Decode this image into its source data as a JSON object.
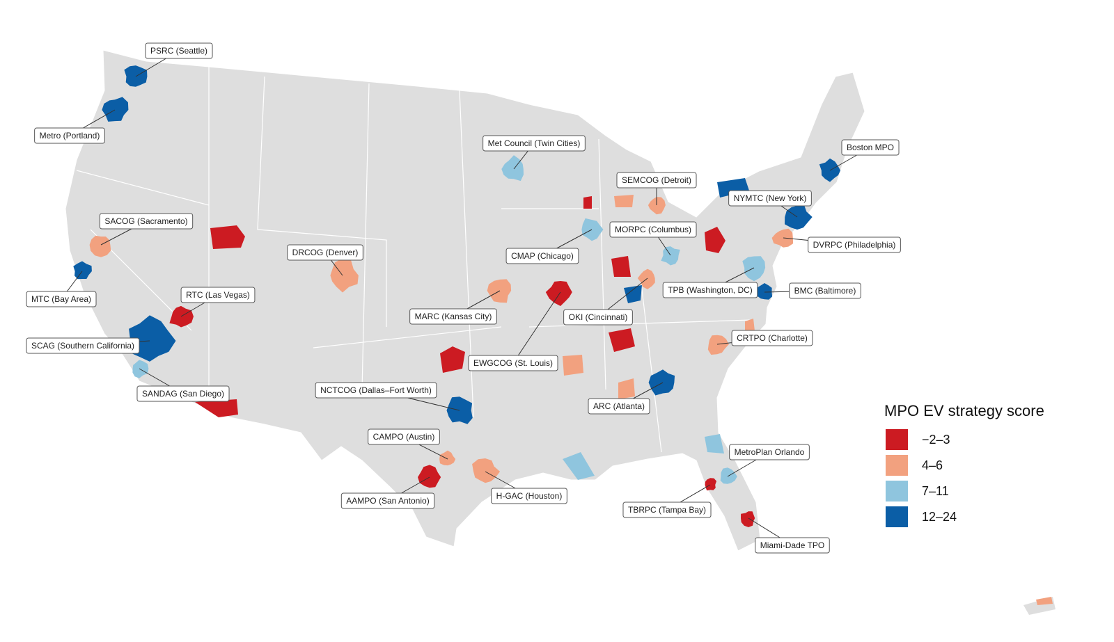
{
  "map": {
    "legend": {
      "title": "MPO EV strategy score",
      "items": [
        {
          "label": "−2–3",
          "color": "#cc1b22"
        },
        {
          "label": "4–6",
          "color": "#f2a17f"
        },
        {
          "label": "7–11",
          "color": "#8fc5de"
        },
        {
          "label": "12–24",
          "color": "#0b5ea6"
        }
      ]
    },
    "mpos": [
      {
        "label": "PSRC (Seattle)",
        "color": "#0b5ea6"
      },
      {
        "label": "Metro (Portland)",
        "color": "#0b5ea6"
      },
      {
        "label": "Met Council (Twin Cities)",
        "color": "#8fc5de"
      },
      {
        "label": "Boston MPO",
        "color": "#0b5ea6"
      },
      {
        "label": "SEMCOG (Detroit)",
        "color": "#f2a17f"
      },
      {
        "label": "NYMTC (New York)",
        "color": "#0b5ea6"
      },
      {
        "label": "SACOG (Sacramento)",
        "color": "#f2a17f"
      },
      {
        "label": "MORPC (Columbus)",
        "color": "#8fc5de"
      },
      {
        "label": "DVRPC (Philadelphia)",
        "color": "#f2a17f"
      },
      {
        "label": "DRCOG (Denver)",
        "color": "#f2a17f"
      },
      {
        "label": "CMAP (Chicago)",
        "color": "#8fc5de"
      },
      {
        "label": "MTC (Bay Area)",
        "color": "#0b5ea6"
      },
      {
        "label": "RTC (Las Vegas)",
        "color": "#cc1b22"
      },
      {
        "label": "TPB (Washington, DC)",
        "color": "#8fc5de"
      },
      {
        "label": "BMC (Baltimore)",
        "color": "#0b5ea6"
      },
      {
        "label": "MARC (Kansas City)",
        "color": "#f2a17f"
      },
      {
        "label": "OKI (Cincinnati)",
        "color": "#f2a17f"
      },
      {
        "label": "SCAG (Southern California)",
        "color": "#0b5ea6"
      },
      {
        "label": "CRTPO (Charlotte)",
        "color": "#f2a17f"
      },
      {
        "label": "EWGCOG (St. Louis)",
        "color": "#cc1b22"
      },
      {
        "label": "NCTCOG (Dallas–Fort Worth)",
        "color": "#0b5ea6"
      },
      {
        "label": "SANDAG (San Diego)",
        "color": "#8fc5de"
      },
      {
        "label": "ARC (Atlanta)",
        "color": "#0b5ea6"
      },
      {
        "label": "MetroPlan Orlando",
        "color": "#8fc5de"
      },
      {
        "label": "CAMPO (Austin)",
        "color": "#f2a17f"
      },
      {
        "label": "H-GAC (Houston)",
        "color": "#f2a17f"
      },
      {
        "label": "AAMPO (San Antonio)",
        "color": "#cc1b22"
      },
      {
        "label": "TBRPC (Tampa Bay)",
        "color": "#cc1b22"
      },
      {
        "label": "Miami-Dade TPO",
        "color": "#cc1b22"
      }
    ]
  }
}
